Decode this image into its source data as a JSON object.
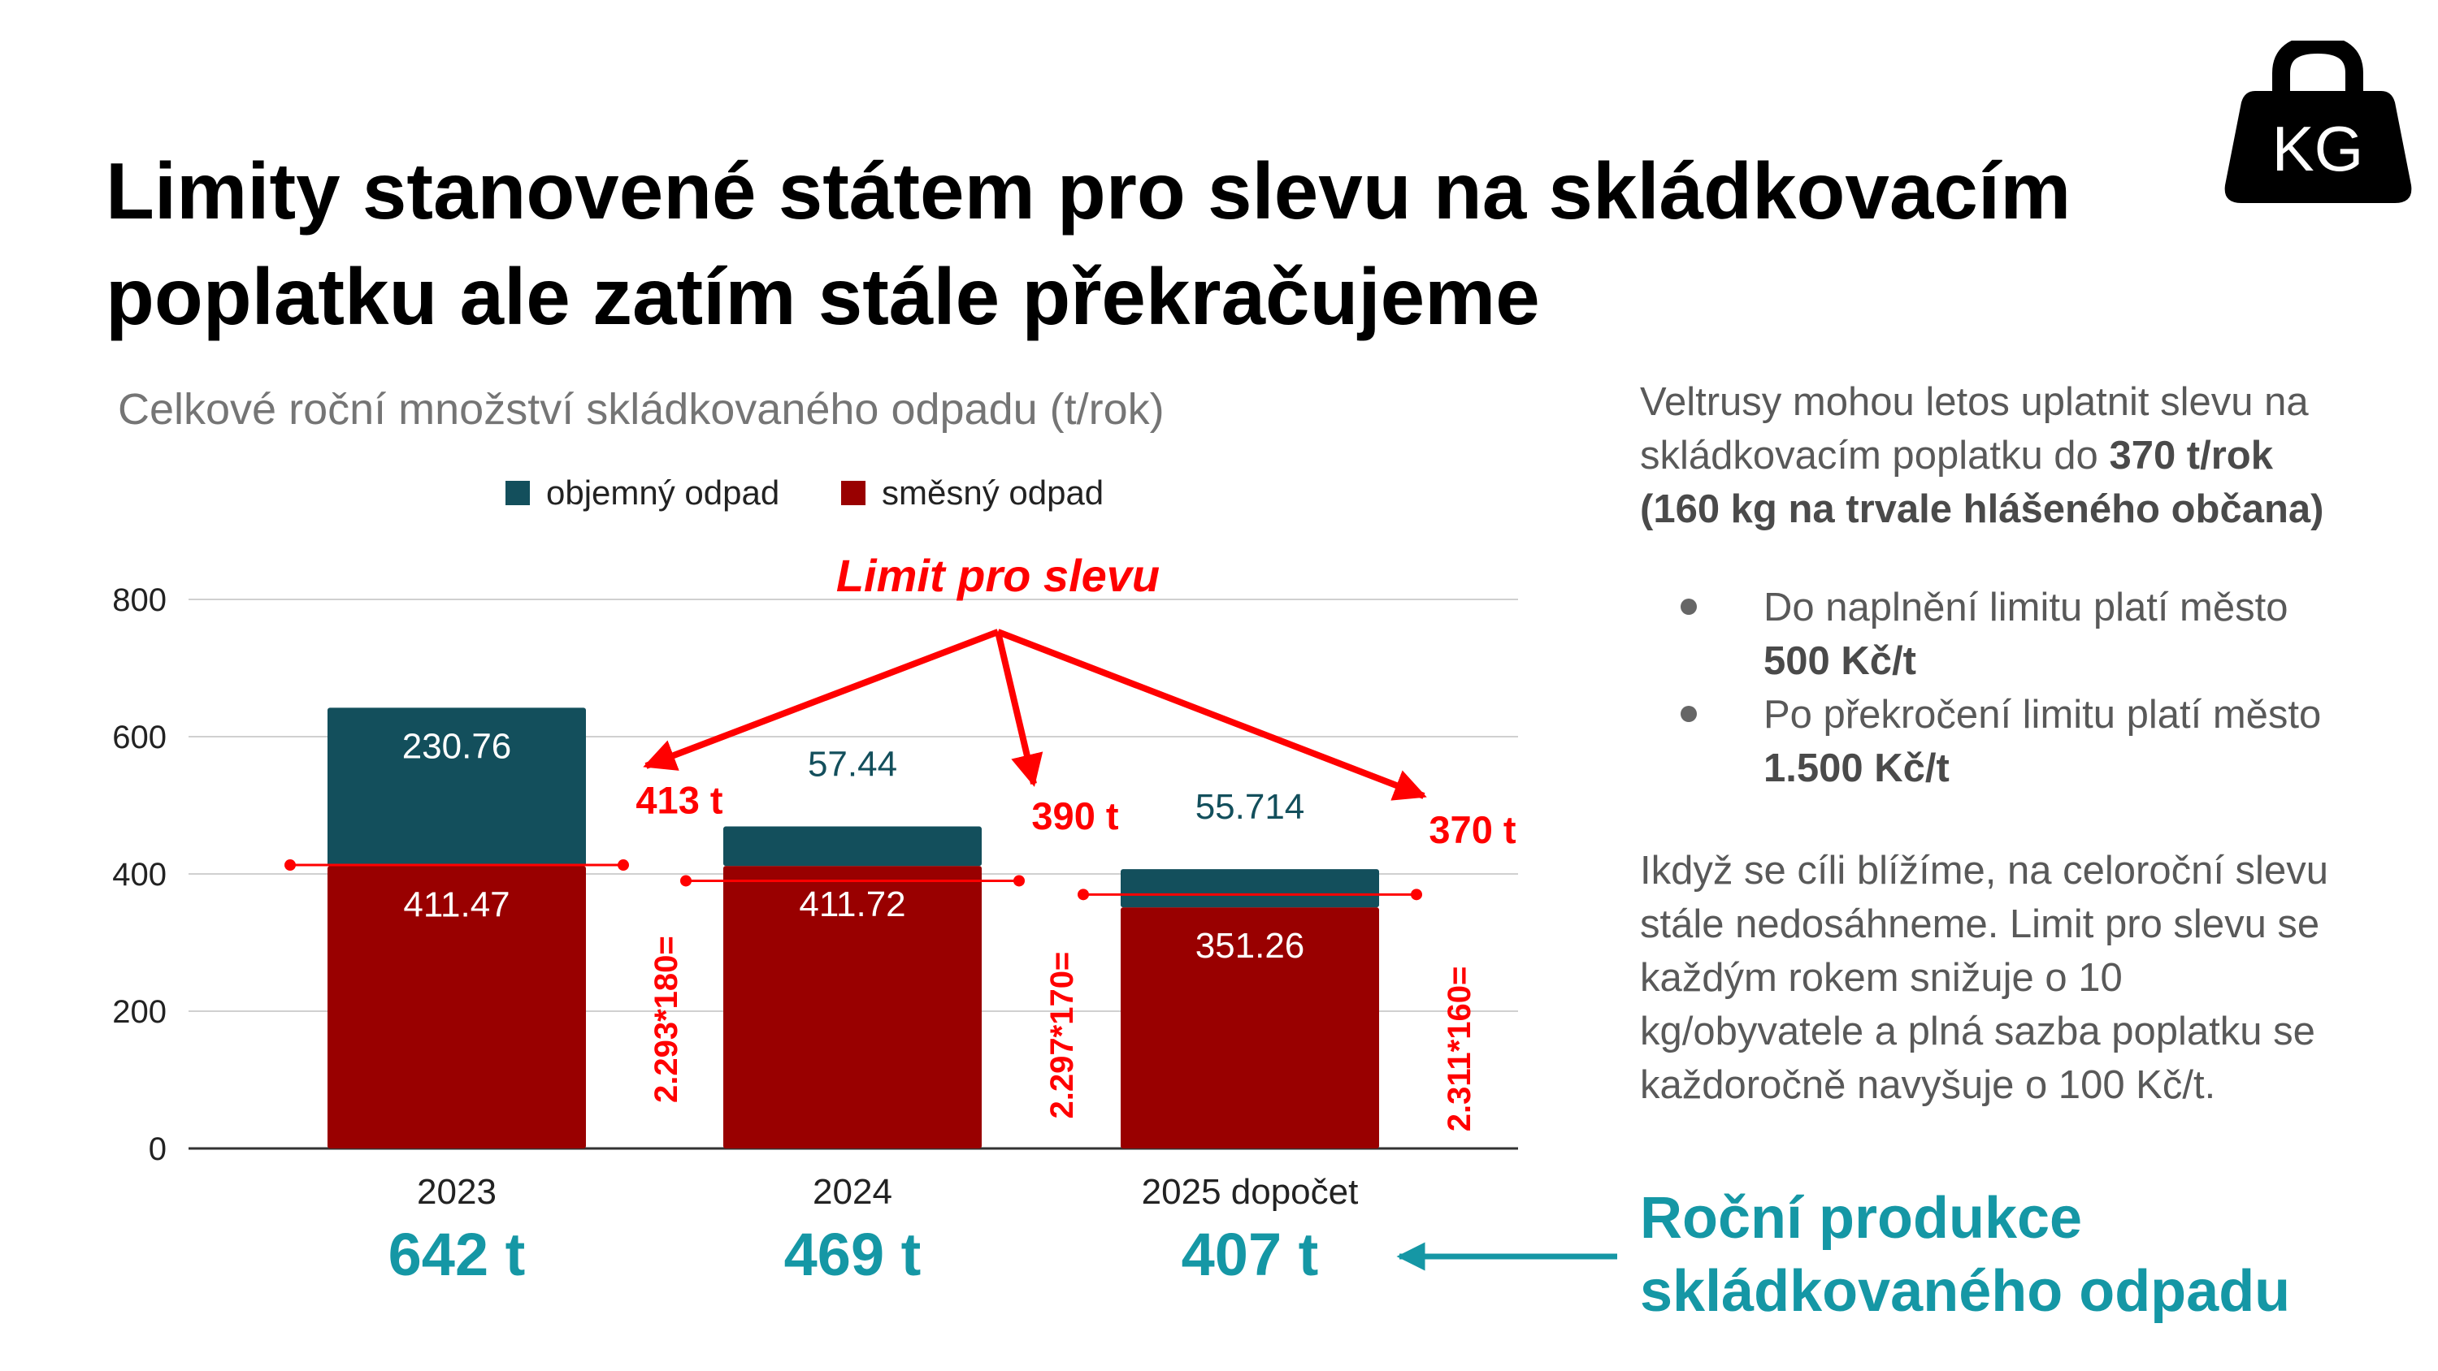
{
  "title_line1": "Limity stanovené státem pro slevu na skládkovacím",
  "title_line2": "poplatku ale zatím stále překračujeme",
  "kg_icon": {
    "icon": "kettlebell-weight-icon",
    "label": "KG"
  },
  "chart_data": {
    "type": "bar",
    "stacked": true,
    "title": "Celkové roční množství skládkovaného odpadu (t/rok)",
    "categories": [
      "2023",
      "2024",
      "2025 dopočet"
    ],
    "series": [
      {
        "name": "směsný odpad",
        "color": "#990000",
        "values": [
          411.47,
          411.72,
          351.26
        ],
        "labels": [
          "411.47",
          "411.72",
          "351.26"
        ]
      },
      {
        "name": "objemný odpad",
        "color": "#134f5c",
        "values": [
          230.76,
          57.44,
          55.714
        ],
        "labels": [
          "230.76",
          "57.44",
          "55.714"
        ]
      }
    ],
    "legend_order": [
      "objemný odpad",
      "směsný odpad"
    ],
    "legend_position": "top-center",
    "yticks": [
      "0",
      "200",
      "400",
      "600",
      "800"
    ],
    "ylim": [
      0,
      800
    ],
    "grid": true,
    "limit_annotation": "Limit pro slevu",
    "limits": [
      {
        "value": 413,
        "label": "413 t",
        "formula": "2.293*180="
      },
      {
        "value": 390,
        "label": "390 t",
        "formula": "2.297*170="
      },
      {
        "value": 370,
        "label": "370 t",
        "formula": "2.311*160="
      }
    ],
    "totals": [
      "642 t",
      "469 t",
      "407 t"
    ],
    "annotation_color": "#ff0000",
    "totals_color": "#1597a5"
  },
  "side": {
    "p1_text": "Veltrusy mohou letos uplatnit slevu na skládkovacím poplatku do ",
    "p1_bold": "370 t/rok (160 kg na trvale hlášeného občana)",
    "bullet1_text": "Do naplnění limitu platí město ",
    "bullet1_bold": "500 Kč/t",
    "bullet2_text": "Po překročení limitu platí město ",
    "bullet2_bold": "1.500 Kč/t",
    "p2": "Ikdyž se cíli blížíme, na celoroční slevu stále nedosáhneme. Limit pro slevu se každým rokem snižuje o 10 kg/obyvatele a plná sazba poplatku se každoročně navyšuje o 100 Kč/t."
  },
  "callout": {
    "line1": "Roční produkce",
    "line2": "skládkovaného odpadu"
  }
}
